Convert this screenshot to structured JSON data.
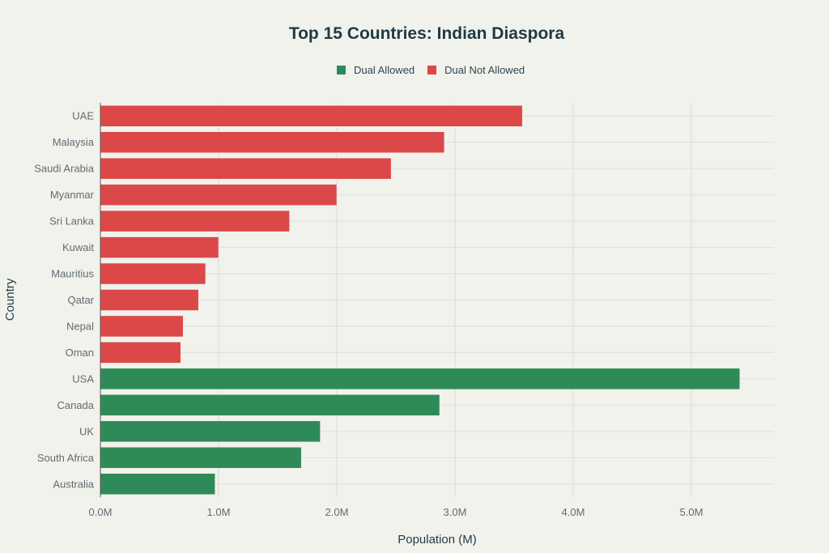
{
  "chart_data": {
    "type": "bar",
    "orientation": "horizontal",
    "title": "Top 15 Countries: Indian Diaspora",
    "xlabel": "Population (M)",
    "ylabel": "Country",
    "xlim": [
      0,
      5.7
    ],
    "x_ticks": [
      0,
      1,
      2,
      3,
      4,
      5
    ],
    "x_tick_labels": [
      "0.0M",
      "1.0M",
      "2.0M",
      "3.0M",
      "4.0M",
      "5.0M"
    ],
    "grid": true,
    "legend_position": "top-center",
    "categories": [
      "UAE",
      "Malaysia",
      "Saudi Arabia",
      "Myanmar",
      "Sri Lanka",
      "Kuwait",
      "Mauritius",
      "Qatar",
      "Nepal",
      "Oman",
      "USA",
      "Canada",
      "UK",
      "South Africa",
      "Australia"
    ],
    "series": [
      {
        "name": "Dual Allowed",
        "color": "#2e8b57",
        "values": [
          null,
          null,
          null,
          null,
          null,
          null,
          null,
          null,
          null,
          null,
          5.41,
          2.87,
          1.86,
          1.7,
          0.97
        ]
      },
      {
        "name": "Dual Not Allowed",
        "color": "#dc4848",
        "values": [
          3.57,
          2.91,
          2.46,
          2.0,
          1.6,
          1.0,
          0.89,
          0.83,
          0.7,
          0.68,
          null,
          null,
          null,
          null,
          null
        ]
      }
    ]
  }
}
